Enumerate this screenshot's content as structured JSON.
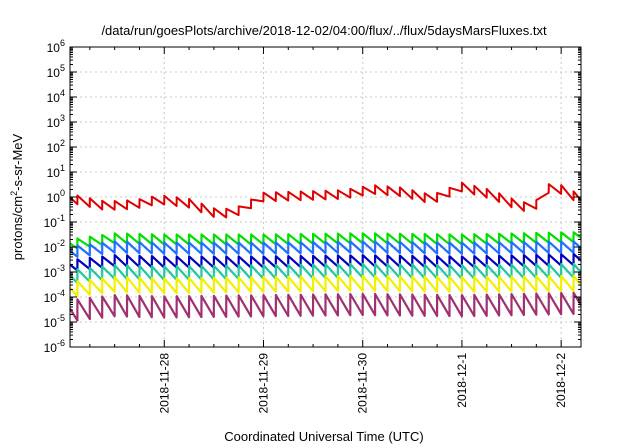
{
  "chart_data": {
    "type": "line",
    "title": "/data/run/goesPlots/archive/2018-12-02/04:00/flux/../flux/5daysMarsFluxes.txt",
    "xlabel": "Coordinated Universal Time (UTC)",
    "ylabel_main": "protons/cm",
    "ylabel_sup": "2",
    "ylabel_tail": "-s-sr-MeV",
    "y_scale": "log",
    "ylim_exp": [
      -6,
      6
    ],
    "y_ticks": [
      {
        "base": "10",
        "exp": "-6",
        "e": -6
      },
      {
        "base": "10",
        "exp": "-5",
        "e": -5
      },
      {
        "base": "10",
        "exp": "-4",
        "e": -4
      },
      {
        "base": "10",
        "exp": "-3",
        "e": -3
      },
      {
        "base": "10",
        "exp": "-2",
        "e": -2
      },
      {
        "base": "10",
        "exp": "-1",
        "e": -1
      },
      {
        "base": "10",
        "exp": "0",
        "e": 0
      },
      {
        "base": "10",
        "exp": "1",
        "e": 1
      },
      {
        "base": "10",
        "exp": "2",
        "e": 2
      },
      {
        "base": "10",
        "exp": "3",
        "e": 3
      },
      {
        "base": "10",
        "exp": "4",
        "e": 4
      },
      {
        "base": "10",
        "exp": "5",
        "e": 5
      },
      {
        "base": "10",
        "exp": "6",
        "e": 6
      }
    ],
    "x_range_days": [
      -0.95,
      4.2
    ],
    "x_ticks": [
      {
        "label": "2018-11-28",
        "day": 0
      },
      {
        "label": "2018-11-29",
        "day": 1
      },
      {
        "label": "2018-11-30",
        "day": 2
      },
      {
        "label": "2018-12-1",
        "day": 3
      },
      {
        "label": "2018-12-2",
        "day": 4
      }
    ],
    "grid": "dashed",
    "legend": "none",
    "series": [
      {
        "color": "#e00000",
        "sawtooth_period_days": 0.125,
        "sawtooth_amplitude_log10": 0.35,
        "trend_log10": [
          [
            -0.95,
            -0.05
          ],
          [
            -0.6,
            -0.35
          ],
          [
            -0.3,
            -0.3
          ],
          [
            -0.05,
            -0.1
          ],
          [
            0.25,
            -0.25
          ],
          [
            0.55,
            -0.7
          ],
          [
            0.75,
            -0.55
          ],
          [
            1.0,
            0.0
          ],
          [
            1.4,
            0.05
          ],
          [
            1.8,
            0.1
          ],
          [
            2.1,
            0.3
          ],
          [
            2.4,
            0.2
          ],
          [
            2.7,
            -0.1
          ],
          [
            3.0,
            0.4
          ],
          [
            3.3,
            0.1
          ],
          [
            3.6,
            -0.4
          ],
          [
            3.75,
            -0.3
          ],
          [
            3.85,
            0.35
          ],
          [
            4.0,
            0.3
          ],
          [
            4.2,
            -0.1
          ]
        ]
      },
      {
        "color": "#00e000",
        "sawtooth_period_days": 0.125,
        "sawtooth_amplitude_log10": 0.4,
        "trend_log10": [
          [
            -0.95,
            -1.9
          ],
          [
            -0.5,
            -1.65
          ],
          [
            0.0,
            -1.7
          ],
          [
            1.0,
            -1.7
          ],
          [
            2.0,
            -1.65
          ],
          [
            3.0,
            -1.7
          ],
          [
            4.2,
            -1.6
          ]
        ]
      },
      {
        "color": "#2070ff",
        "sawtooth_period_days": 0.125,
        "sawtooth_amplitude_log10": 0.45,
        "trend_log10": [
          [
            -0.95,
            -2.2
          ],
          [
            -0.5,
            -2.0
          ],
          [
            0.0,
            -2.05
          ],
          [
            1.0,
            -2.05
          ],
          [
            2.0,
            -2.0
          ],
          [
            3.0,
            -2.05
          ],
          [
            4.2,
            -2.0
          ]
        ]
      },
      {
        "color": "#0000c0",
        "sawtooth_period_days": 0.125,
        "sawtooth_amplitude_log10": 0.45,
        "trend_log10": [
          [
            -0.95,
            -2.75
          ],
          [
            -0.5,
            -2.55
          ],
          [
            0.0,
            -2.6
          ],
          [
            1.0,
            -2.6
          ],
          [
            2.0,
            -2.55
          ],
          [
            3.0,
            -2.6
          ],
          [
            4.2,
            -2.5
          ]
        ]
      },
      {
        "color": "#20c8a0",
        "sawtooth_period_days": 0.125,
        "sawtooth_amplitude_log10": 0.55,
        "trend_log10": [
          [
            -0.95,
            -3.2
          ],
          [
            -0.5,
            -3.0
          ],
          [
            0.0,
            -3.05
          ],
          [
            1.0,
            -3.0
          ],
          [
            2.0,
            -2.95
          ],
          [
            3.0,
            -3.0
          ],
          [
            4.2,
            -2.95
          ]
        ]
      },
      {
        "color": "#f0f000",
        "sawtooth_period_days": 0.125,
        "sawtooth_amplitude_log10": 0.6,
        "trend_log10": [
          [
            -0.95,
            -3.7
          ],
          [
            -0.5,
            -3.5
          ],
          [
            0.0,
            -3.55
          ],
          [
            1.0,
            -3.5
          ],
          [
            2.0,
            -3.45
          ],
          [
            3.0,
            -3.5
          ],
          [
            4.2,
            -3.45
          ]
        ]
      },
      {
        "color": "#a03070",
        "sawtooth_period_days": 0.125,
        "sawtooth_amplitude_log10": 0.85,
        "trend_log10": [
          [
            -0.95,
            -4.55
          ],
          [
            -0.5,
            -4.35
          ],
          [
            0.0,
            -4.4
          ],
          [
            1.0,
            -4.35
          ],
          [
            2.0,
            -4.3
          ],
          [
            3.0,
            -4.35
          ],
          [
            4.2,
            -4.25
          ]
        ]
      }
    ]
  }
}
